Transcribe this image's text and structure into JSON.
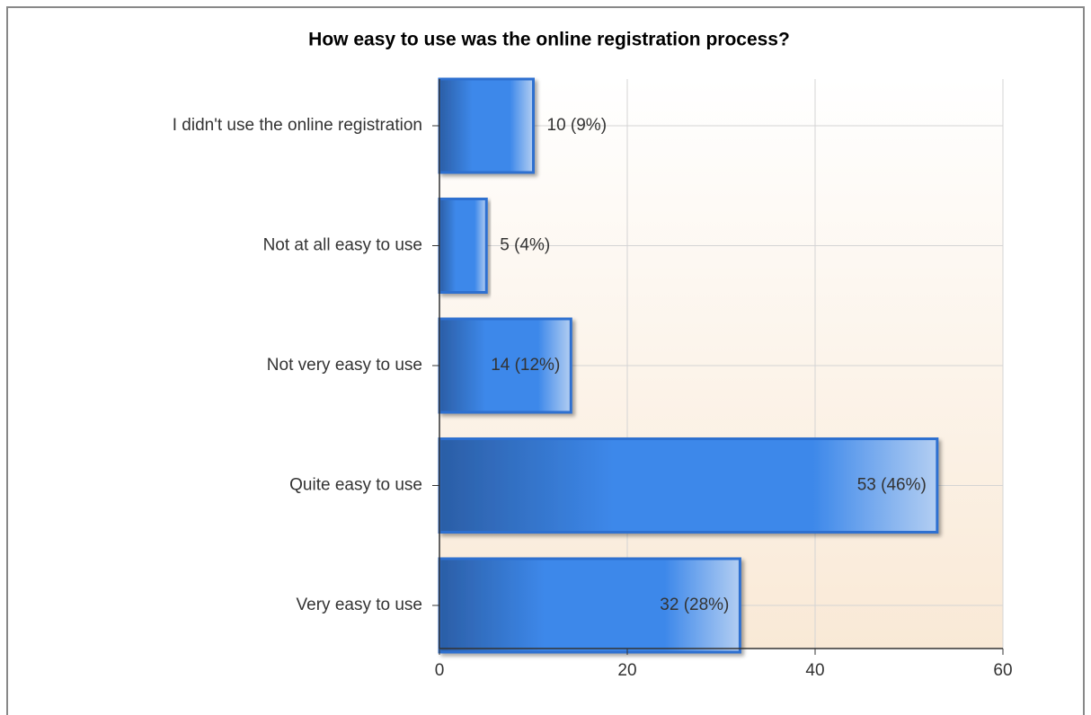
{
  "chart_data": {
    "type": "barh",
    "title": "How easy to use was the online registration process?",
    "categories": [
      "I didn't use the online registration",
      "Not at all easy to use",
      "Not very easy to use",
      "Quite easy to use",
      "Very easy to use"
    ],
    "values": [
      10,
      5,
      14,
      53,
      32
    ],
    "value_labels": [
      "10 (9%)",
      "5 (4%)",
      "14 (12%)",
      "53 (46%)",
      "32 (28%)"
    ],
    "color": "#3d88ea",
    "xlim": [
      0,
      60
    ],
    "xticks": [
      0,
      20,
      40,
      60
    ],
    "grid": true
  }
}
